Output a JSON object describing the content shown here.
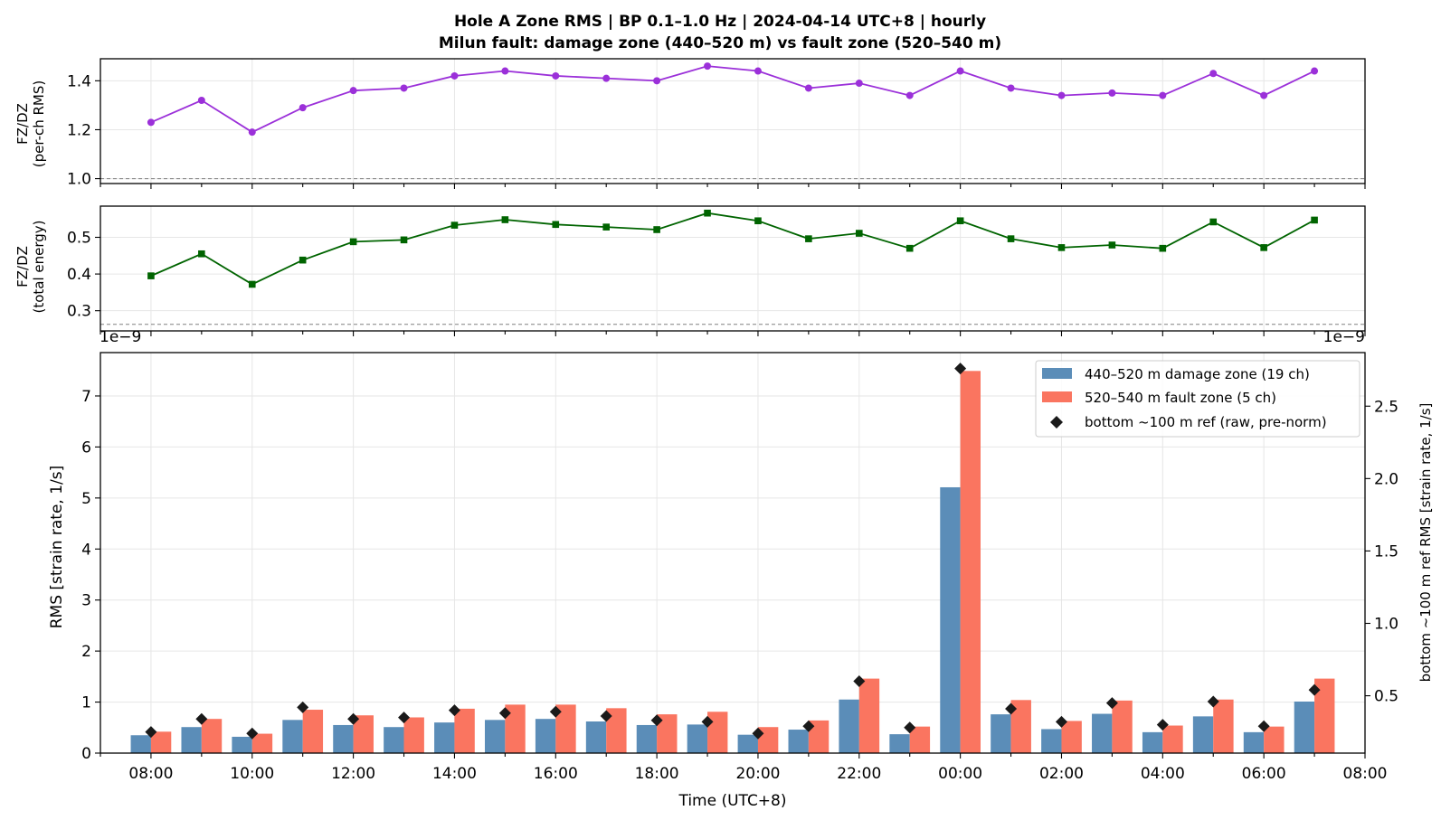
{
  "chart_data": {
    "title_line1": "Hole A Zone RMS  |  BP 0.1–1.0 Hz  |  2024-04-14 UTC+8  |  hourly",
    "title_line2": "Milun fault: damage zone (440–520 m) vs fault zone (520–540 m)",
    "x_axis": {
      "label": "Time (UTC+8)",
      "tick_labels": [
        "08:00",
        "10:00",
        "12:00",
        "14:00",
        "16:00",
        "18:00",
        "20:00",
        "22:00",
        "00:00",
        "02:00",
        "04:00",
        "06:00",
        "08:00"
      ],
      "range_hours": [
        -1.0,
        24.0
      ]
    },
    "hours": [
      "08:00",
      "09:00",
      "10:00",
      "11:00",
      "12:00",
      "13:00",
      "14:00",
      "15:00",
      "16:00",
      "17:00",
      "18:00",
      "19:00",
      "20:00",
      "21:00",
      "22:00",
      "23:00",
      "00:00",
      "01:00",
      "02:00",
      "03:00",
      "04:00",
      "05:00",
      "06:00",
      "07:00"
    ],
    "panels": [
      {
        "type": "line",
        "ylabel_line1": "FZ/DZ",
        "ylabel_line2": "(per-ch RMS)",
        "ylim": [
          0.98,
          1.49
        ],
        "yticks": [
          1.0,
          1.2,
          1.4
        ],
        "ytick_labels": [
          "1.0",
          "1.2",
          "1.4"
        ],
        "reference_line": 1.0,
        "color": "#9b30d9",
        "marker": "circle",
        "values": [
          1.23,
          1.32,
          1.19,
          1.29,
          1.36,
          1.37,
          1.42,
          1.44,
          1.42,
          1.41,
          1.4,
          1.46,
          1.44,
          1.37,
          1.39,
          1.34,
          1.44,
          1.37,
          1.34,
          1.35,
          1.34,
          1.43,
          1.34,
          1.44
        ]
      },
      {
        "type": "line",
        "ylabel_line1": "FZ/DZ",
        "ylabel_line2": "(total energy)",
        "ylim": [
          0.245,
          0.585
        ],
        "yticks": [
          0.3,
          0.4,
          0.5
        ],
        "ytick_labels": [
          "0.3",
          "0.4",
          "0.5"
        ],
        "reference_line": 0.263,
        "color": "#006400",
        "marker": "square",
        "values": [
          0.395,
          0.455,
          0.372,
          0.438,
          0.488,
          0.493,
          0.533,
          0.548,
          0.535,
          0.528,
          0.521,
          0.566,
          0.545,
          0.496,
          0.511,
          0.47,
          0.545,
          0.496,
          0.472,
          0.479,
          0.47,
          0.542,
          0.472,
          0.547
        ]
      },
      {
        "type": "bar",
        "offset_text_left": "1e−9",
        "offset_text_right": "1e−9",
        "ylabel": "RMS  [strain rate, 1/s]",
        "ylim": [
          0,
          7.85
        ],
        "yticks": [
          0,
          1,
          2,
          3,
          4,
          5,
          6,
          7
        ],
        "ytick_labels": [
          "0",
          "1",
          "2",
          "3",
          "4",
          "5",
          "6",
          "7"
        ],
        "ylabel_right": "bottom ~100 m ref RMS  [strain rate, 1/s]",
        "ylim_right": [
          0.104,
          2.87
        ],
        "yticks_right": [
          0.5,
          1.0,
          1.5,
          2.0,
          2.5
        ],
        "ytick_labels_right": [
          "0.5",
          "1.0",
          "1.5",
          "2.0",
          "2.5"
        ],
        "series": [
          {
            "name": "440–520 m  damage zone (19 ch)",
            "color": "#5b8db8",
            "values": [
              0.35,
              0.51,
              0.32,
              0.65,
              0.55,
              0.51,
              0.6,
              0.65,
              0.67,
              0.62,
              0.55,
              0.56,
              0.36,
              0.46,
              1.05,
              0.37,
              5.21,
              0.76,
              0.47,
              0.77,
              0.41,
              0.72,
              0.41,
              1.01
            ]
          },
          {
            "name": "520–540 m  fault zone (5 ch)",
            "color": "#fa7560",
            "values": [
              0.42,
              0.67,
              0.38,
              0.85,
              0.74,
              0.7,
              0.87,
              0.95,
              0.95,
              0.88,
              0.76,
              0.81,
              0.51,
              0.64,
              1.46,
              0.52,
              7.49,
              1.04,
              0.63,
              1.03,
              0.54,
              1.05,
              0.52,
              1.46
            ]
          }
        ],
        "ref_series": {
          "name": "bottom ~100 m ref (raw, pre-norm)",
          "color": "#1a1a1a",
          "values": [
            0.25,
            0.34,
            0.24,
            0.42,
            0.34,
            0.35,
            0.4,
            0.38,
            0.39,
            0.36,
            0.33,
            0.32,
            0.24,
            0.29,
            0.6,
            0.28,
            2.76,
            0.41,
            0.32,
            0.45,
            0.3,
            0.46,
            0.29,
            0.54
          ]
        }
      }
    ]
  }
}
